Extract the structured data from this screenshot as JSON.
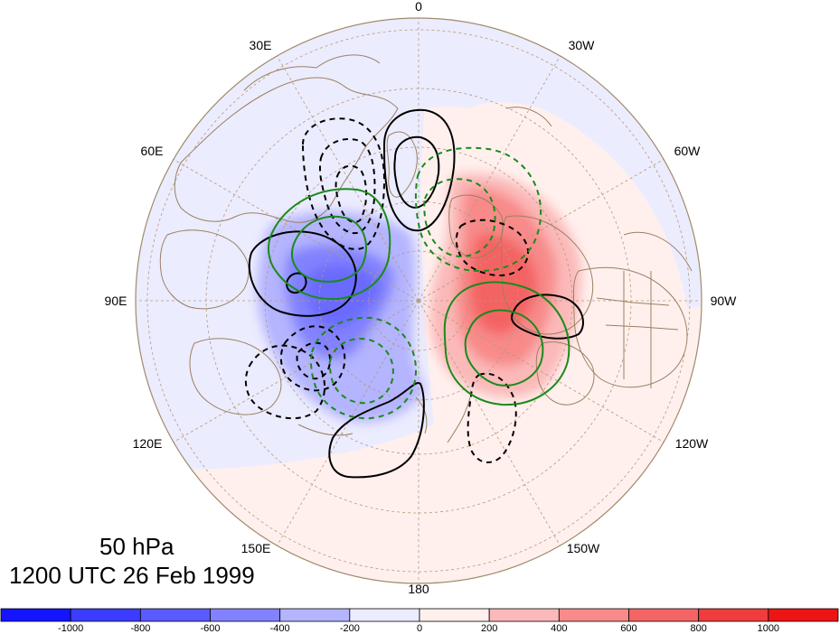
{
  "title": {
    "level": "50 hPa",
    "time": "1200 UTC 26 Feb 1999"
  },
  "longitude_labels": [
    "0",
    "30W",
    "60W",
    "90W",
    "120W",
    "150W",
    "180",
    "150E",
    "120E",
    "90E",
    "60E",
    "30E"
  ],
  "colorbar": {
    "colors": [
      "#1414ff",
      "#3c3cff",
      "#5a5aff",
      "#8282ff",
      "#b4b4ff",
      "#ececff",
      "#fff0ee",
      "#fbb9b9",
      "#f88a8a",
      "#f46464",
      "#f03c3c",
      "#ee1414"
    ],
    "tick_labels": [
      "-1000",
      "-800",
      "-600",
      "-400",
      "-200",
      "0",
      "200",
      "400",
      "600",
      "800",
      "1000"
    ]
  },
  "colors": {
    "land_outline": "#9b8060",
    "grid": "#b59a7a",
    "positive_contour": "#000000",
    "green_contour": "#1a8a1a"
  }
}
